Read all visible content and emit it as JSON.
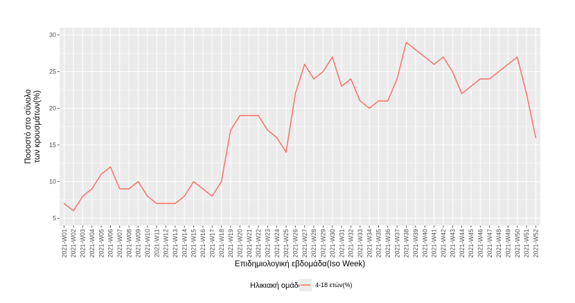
{
  "chart_data": {
    "type": "line",
    "title": "",
    "xlabel": "Επιδημιολογική εβδομάδα(Iso Week)",
    "ylabel_lines": [
      "Ποσοστό στο σύνολο",
      "των κρουσμάτων(%)"
    ],
    "ylim": [
      5,
      30
    ],
    "yticks": [
      5,
      10,
      15,
      20,
      25,
      30
    ],
    "grid": true,
    "legend_position": "bottom",
    "legend_title": "Ηλικιακή ομάδα",
    "colors": {
      "series": "#f8766d",
      "panel": "#ebebeb",
      "grid": "#ffffff"
    },
    "categories": [
      "2021-W01",
      "2021-W02",
      "2021-W03",
      "2021-W04",
      "2021-W05",
      "2021-W06",
      "2021-W07",
      "2021-W08",
      "2021-W09",
      "2021-W10",
      "2021-W11",
      "2021-W12",
      "2021-W13",
      "2021-W14",
      "2021-W15",
      "2021-W16",
      "2021-W17",
      "2021-W18",
      "2021-W19",
      "2021-W20",
      "2021-W21",
      "2021-W22",
      "2021-W23",
      "2021-W24",
      "2021-W25",
      "2021-W26",
      "2021-W27",
      "2021-W28",
      "2021-W29",
      "2021-W30",
      "2021-W31",
      "2021-W32",
      "2021-W33",
      "2021-W34",
      "2021-W35",
      "2021-W36",
      "2021-W37",
      "2021-W38",
      "2021-W39",
      "2021-W40",
      "2021-W41",
      "2021-W42",
      "2021-W43",
      "2021-W44",
      "2021-W45",
      "2021-W46",
      "2021-W47",
      "2021-W48",
      "2021-W49",
      "2021-W50",
      "2021-W51",
      "2021-W52"
    ],
    "series": [
      {
        "name": "4-18 ετών(%)",
        "values": [
          7,
          6,
          8,
          9,
          11,
          12,
          9,
          9,
          10,
          8,
          7,
          7,
          7,
          8,
          10,
          9,
          8,
          10,
          17,
          19,
          19,
          19,
          17,
          16,
          14,
          22,
          26,
          24,
          25,
          27,
          23,
          24,
          21,
          20,
          21,
          21,
          24,
          29,
          28,
          27,
          26,
          27,
          25,
          22,
          23,
          24,
          24,
          25,
          26,
          27,
          22,
          16
        ]
      }
    ]
  }
}
